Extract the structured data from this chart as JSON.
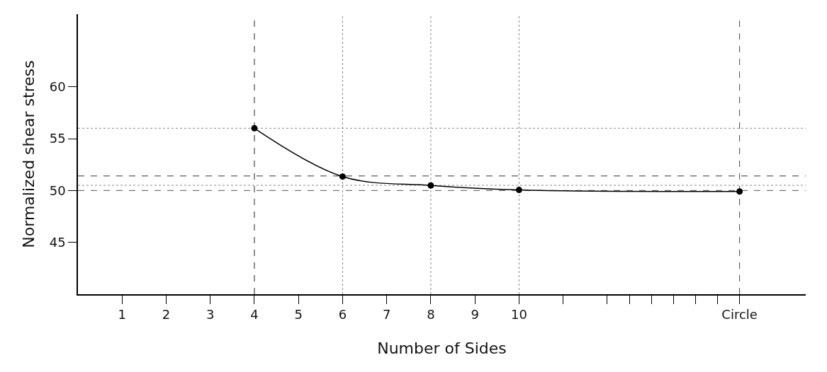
{
  "chart_data": {
    "type": "line",
    "xlabel": "Number of Sides",
    "ylabel": "Normalized shear stress",
    "x": [
      4,
      6,
      8,
      10,
      15
    ],
    "series": [
      {
        "color": "#000000",
        "values": [
          56,
          51.34,
          50.48,
          50.05,
          49.9
        ]
      }
    ],
    "xlim": [
      0,
      16.5
    ],
    "ylim": [
      40,
      67
    ],
    "xticks": [
      1,
      2,
      3,
      4,
      5,
      6,
      7,
      8,
      9,
      10,
      {
        "value": 11,
        "label": null
      },
      {
        "value": 12,
        "label": null
      },
      {
        "value": 12.5,
        "label": null
      },
      {
        "value": 13,
        "label": null
      },
      {
        "value": 13.5,
        "label": null
      },
      {
        "value": 14,
        "label": null
      },
      {
        "value": 14.5,
        "label": null
      },
      {
        "value": 15,
        "label": "Circle"
      }
    ],
    "yticks": [
      45,
      50,
      55,
      60
    ],
    "ref_lines": [
      {
        "axis": "y",
        "value": 56,
        "color": "#888888",
        "line_style": "dotted"
      },
      {
        "axis": "y",
        "value": 51.4,
        "color": "#333333",
        "line_style": "dashed"
      },
      {
        "axis": "y",
        "value": 50.5,
        "color": "#888888",
        "line_style": "dotted"
      },
      {
        "axis": "y",
        "value": 50,
        "color": "#555555",
        "line_style": "dashed"
      },
      {
        "axis": "x",
        "value": 4,
        "color": "#222222",
        "line_style": "dashed"
      },
      {
        "axis": "x",
        "value": 6,
        "color": "#888888",
        "line_style": "dotted"
      },
      {
        "axis": "x",
        "value": 8,
        "color": "#888888",
        "line_style": "dotted"
      },
      {
        "axis": "x",
        "value": 10,
        "color": "#888888",
        "line_style": "dotted"
      },
      {
        "axis": "x",
        "value": 15,
        "color": "#444444",
        "line_style": "dashed"
      }
    ],
    "grid": false,
    "marker": "circle",
    "line_style": "solid"
  }
}
